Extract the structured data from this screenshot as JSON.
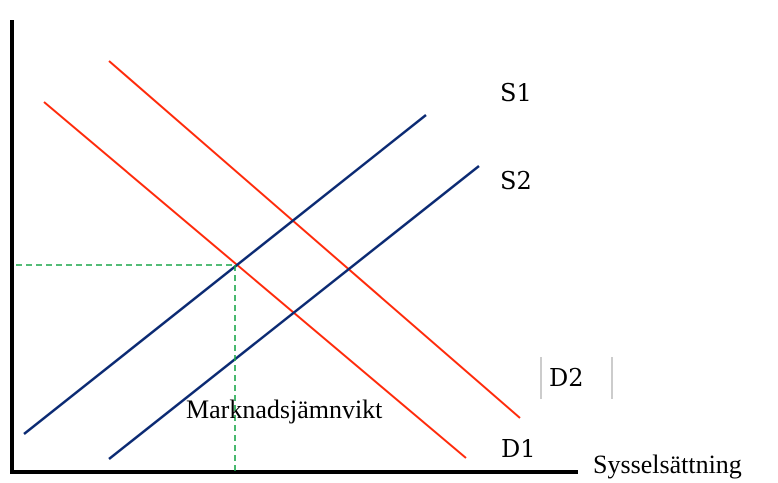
{
  "labels": {
    "s1": "S1",
    "s2": "S2",
    "d1": "D1",
    "d2": "D2",
    "x_axis": "Sysselsättning",
    "equilibrium": "Marknadsjämnvikt"
  },
  "colors": {
    "supply": "#0b2a73",
    "demand": "#ff2a0a",
    "guide": "#1aa64a",
    "axis": "#000000"
  }
}
